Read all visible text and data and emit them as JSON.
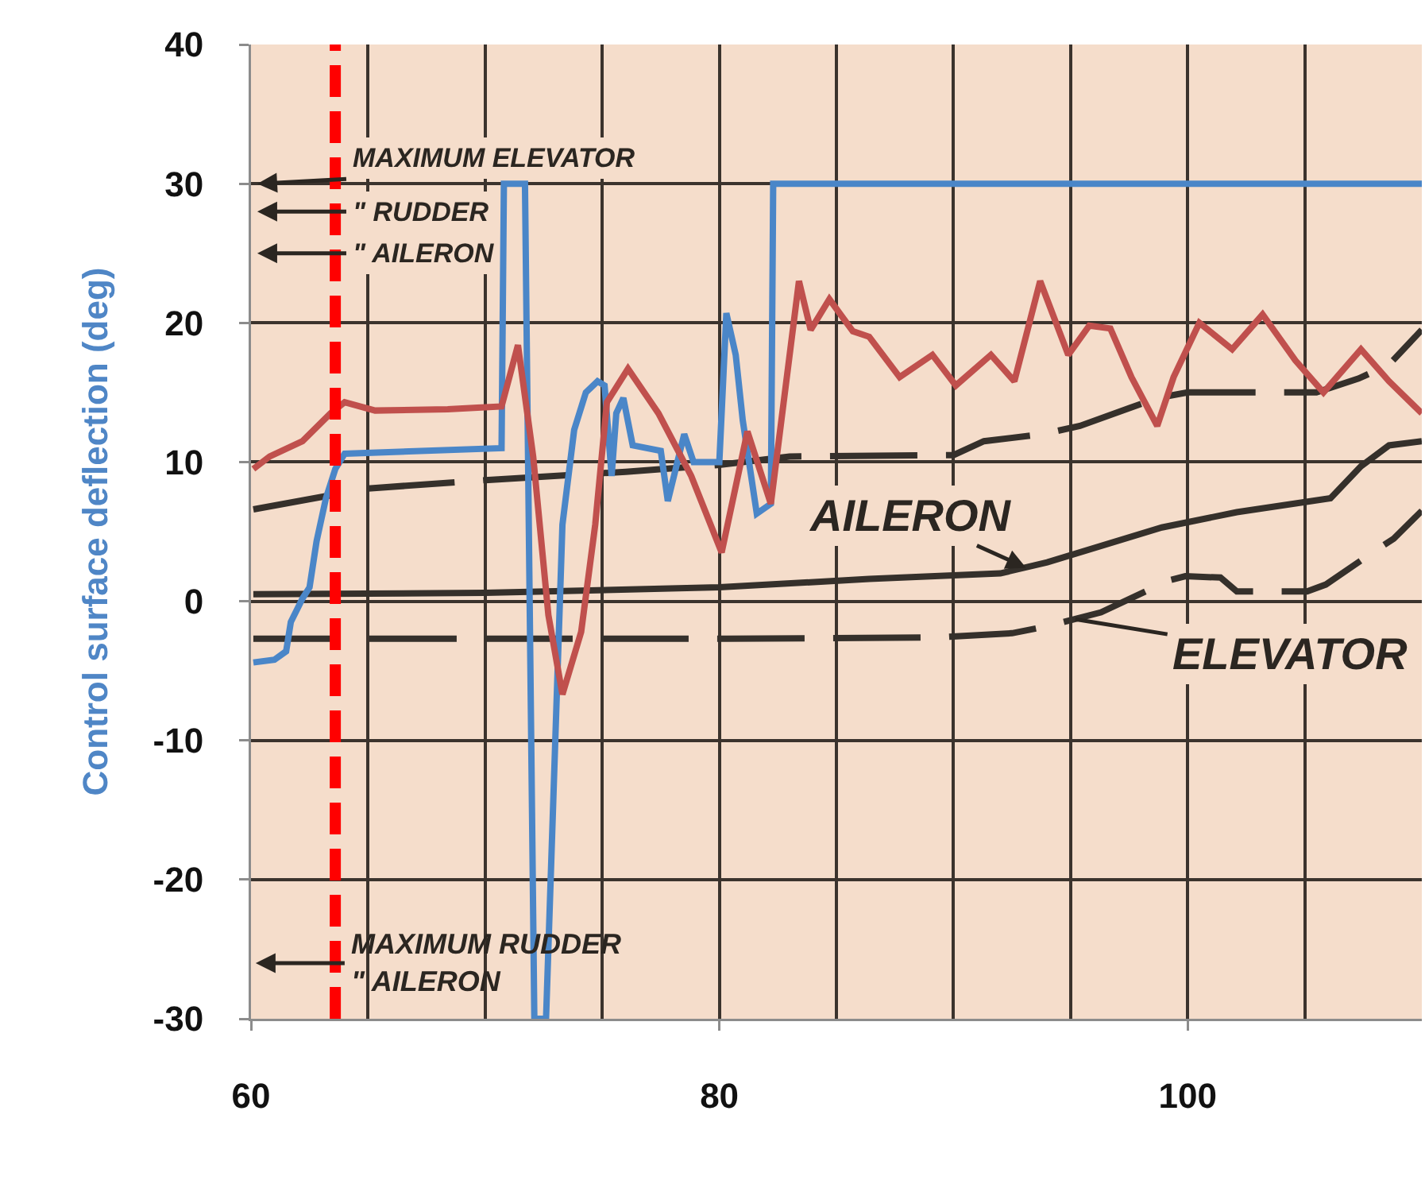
{
  "chart_data": {
    "type": "line",
    "ylabel": "Control surface deflection (deg)",
    "xlim": [
      60,
      110
    ],
    "xticks": [
      60,
      {
        "value": 65,
        "label": null
      },
      {
        "value": 70,
        "label": null
      },
      {
        "value": 75,
        "label": null
      },
      80,
      {
        "value": 85,
        "label": null
      },
      {
        "value": 90,
        "label": null
      },
      {
        "value": 95,
        "label": null
      },
      100,
      {
        "value": 105,
        "label": null
      }
    ],
    "ylim": [
      -30,
      40
    ],
    "yticks": [
      -30,
      -20,
      -10,
      0,
      10,
      20,
      30,
      40
    ],
    "grid": true,
    "series": [
      {
        "color": "#35302b",
        "line_style": "solid",
        "x": [
          60.1,
          70,
          80,
          86.4,
          92,
          94,
          98.9,
          102.1,
          106.1,
          107.4,
          108.6,
          110
        ],
        "values": [
          0.5,
          0.6,
          1.0,
          1.6,
          2.0,
          2.8,
          5.3,
          6.4,
          7.4,
          9.7,
          11.2,
          11.5
        ]
      },
      {
        "color": "#35302b",
        "line_style": "dashed",
        "x": [
          60.1,
          65,
          70,
          76,
          80,
          83,
          90,
          91.3,
          93.8,
          95.4,
          98.7,
          100,
          105.5,
          107.3,
          108.6,
          110
        ],
        "values": [
          6.6,
          8.1,
          8.7,
          9.3,
          9.8,
          10.4,
          10.5,
          11.5,
          12,
          12.6,
          14.6,
          15,
          15,
          16,
          17,
          19.5
        ]
      },
      {
        "color": "#35302b",
        "line_style": "dashed",
        "x": [
          60.1,
          80.3,
          89.3,
          92.5,
          94,
          96.3,
          99.2,
          99.9,
          101.4,
          102.1,
          105.1,
          105.9,
          107.9,
          108.8,
          110
        ],
        "values": [
          -2.7,
          -2.7,
          -2.6,
          -2.3,
          -1.8,
          -0.8,
          1.5,
          1.8,
          1.7,
          0.7,
          0.7,
          1.2,
          3.5,
          4.5,
          6.5
        ]
      },
      {
        "color": "#4a86c8",
        "line_style": "solid",
        "x": [
          60.1,
          61.0,
          61.5,
          61.7,
          62.2,
          62.5,
          62.8,
          63.2,
          63.6,
          64.0,
          70.7,
          70.8,
          71.7,
          72.1,
          72.6,
          73.3,
          73.8,
          74.3,
          74.8,
          75.1,
          75.4,
          75.6,
          75.9,
          76.3,
          77.5,
          77.8,
          78.5,
          78.9,
          80.0,
          80.3,
          80.7,
          81.0,
          81.6,
          82.2,
          82.3,
          110
        ],
        "values": [
          -4.4,
          -4.2,
          -3.6,
          -1.5,
          0.2,
          1.0,
          4.3,
          7.4,
          9.5,
          10.6,
          11.0,
          30,
          30,
          -30,
          -30,
          5.5,
          12.3,
          15.0,
          15.8,
          15.5,
          9.0,
          13.5,
          14.6,
          11.2,
          10.8,
          7.2,
          12.0,
          10.0,
          10.0,
          20.7,
          17.7,
          13,
          6.3,
          7,
          30,
          30
        ]
      },
      {
        "color": "#c0504d",
        "line_style": "solid",
        "x": [
          60.1,
          60.8,
          62.2,
          63.4,
          64.0,
          65.3,
          68.4,
          70.7,
          71.4,
          72.05,
          72.7,
          73.3,
          74.1,
          74.7,
          75.2,
          76.1,
          77.4,
          78.8,
          80.1,
          81.2,
          82.2,
          83.4,
          83.9,
          84.7,
          85.7,
          86.4,
          87.7,
          89.1,
          90.1,
          91.6,
          92.6,
          93.7,
          94.9,
          95.8,
          96.7,
          97.6,
          98.7,
          99.4,
          100.5,
          101.9,
          103.2,
          104.6,
          105.8,
          107.4,
          108.6,
          110
        ],
        "values": [
          9.5,
          10.4,
          11.5,
          13.5,
          14.3,
          13.7,
          13.8,
          14.0,
          18.4,
          10.4,
          -1,
          -6.7,
          -2.2,
          5.5,
          14.3,
          16.7,
          13.5,
          9.0,
          3.5,
          12.2,
          7.0,
          23,
          19.5,
          21.7,
          19.4,
          19.0,
          16.1,
          17.7,
          15.5,
          17.7,
          15.8,
          23,
          17.7,
          19.8,
          19.6,
          16.1,
          12.6,
          16.1,
          20,
          18.1,
          20.6,
          17.3,
          15,
          18.1,
          15.8,
          13.5
        ]
      }
    ],
    "ref_lines": [
      {
        "axis": "x",
        "value": 63.6,
        "color": "#ff0000",
        "line_style": "dashed"
      }
    ],
    "annotations": [
      "MAXIMUM ELEVATOR",
      "\" RUDDER",
      "\" AILERON",
      {
        "text": "AILERON",
        "x": 93.1,
        "y": 2.4
      },
      {
        "text": "ELEVATOR",
        "x": 95.2,
        "y": -1.3
      },
      "MAXIMUM RUDDER\n\" AILERON"
    ]
  }
}
